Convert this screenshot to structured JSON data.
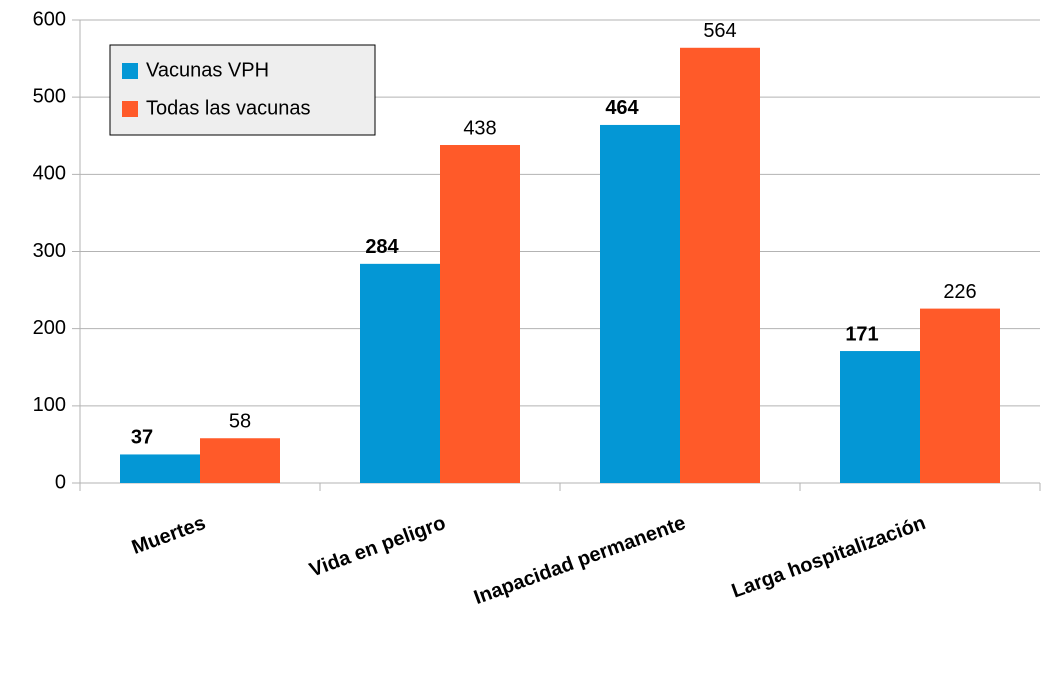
{
  "chart_data": {
    "type": "bar",
    "categories": [
      "Muertes",
      "Vida en peligro",
      "Inapacidad permanente",
      "Larga hospitalización"
    ],
    "series": [
      {
        "name": "Vacunas VPH",
        "color": "#0497d5",
        "values": [
          37,
          284,
          464,
          171
        ]
      },
      {
        "name": "Todas las vacunas",
        "color": "#ff5a29",
        "values": [
          58,
          438,
          564,
          226
        ]
      }
    ],
    "ylim": [
      0,
      600
    ],
    "yticks": [
      0,
      100,
      200,
      300,
      400,
      500,
      600
    ],
    "grid": true,
    "legend": "top-left"
  }
}
